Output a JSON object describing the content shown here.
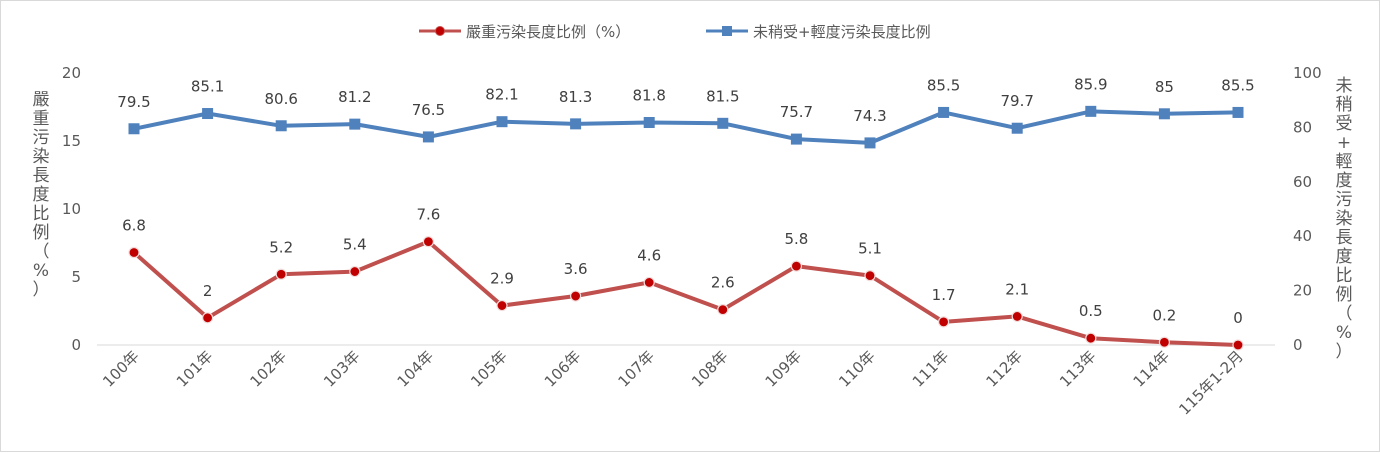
{
  "chart_data": {
    "type": "line",
    "categories": [
      "100年",
      "101年",
      "102年",
      "103年",
      "104年",
      "105年",
      "106年",
      "107年",
      "108年",
      "109年",
      "110年",
      "111年",
      "112年",
      "113年",
      "114年",
      "115年1-2月"
    ],
    "series": [
      {
        "name": "嚴重污染長度比例（%）",
        "axis": "left",
        "color": "#c0504d",
        "marker": "circle",
        "values": [
          6.8,
          2,
          5.2,
          5.4,
          7.6,
          2.9,
          3.6,
          4.6,
          2.6,
          5.8,
          5.1,
          1.7,
          2.1,
          0.5,
          0.2,
          0
        ],
        "labels": [
          "6.8",
          "2",
          "5.2",
          "5.4",
          "7.6",
          "2.9",
          "3.6",
          "4.6",
          "2.6",
          "5.8",
          "5.1",
          "1.7",
          "2.1",
          "0.5",
          "0.2",
          "0"
        ]
      },
      {
        "name": "未稍受+輕度污染長度比例",
        "axis": "right",
        "color": "#4f81bd",
        "marker": "square",
        "values": [
          79.5,
          85.1,
          80.6,
          81.2,
          76.5,
          82.1,
          81.3,
          81.8,
          81.5,
          75.7,
          74.3,
          85.5,
          79.7,
          85.9,
          85,
          85.5
        ],
        "labels": [
          "79.5",
          "85.1",
          "80.6",
          "81.2",
          "76.5",
          "82.1",
          "81.3",
          "81.8",
          "81.5",
          "75.7",
          "74.3",
          "85.5",
          "79.7",
          "85.9",
          "85",
          "85.5"
        ]
      }
    ],
    "y_left": {
      "label_chars": [
        "嚴",
        "重",
        "污",
        "染",
        "長",
        "度",
        "比",
        "例",
        "（",
        "%",
        "）"
      ],
      "ylim": [
        0,
        20
      ],
      "ticks": [
        "0",
        "5",
        "10",
        "15",
        "20"
      ]
    },
    "y_right": {
      "label_chars": [
        "未",
        "稍",
        "受",
        "+",
        "輕",
        "度",
        "污",
        "染",
        "長",
        "度",
        "比",
        "例",
        "（",
        "%",
        "）"
      ],
      "ylim": [
        0,
        100
      ],
      "ticks": [
        "0",
        "20",
        "40",
        "60",
        "80",
        "100"
      ]
    },
    "grid": false,
    "legend_position": "top"
  }
}
